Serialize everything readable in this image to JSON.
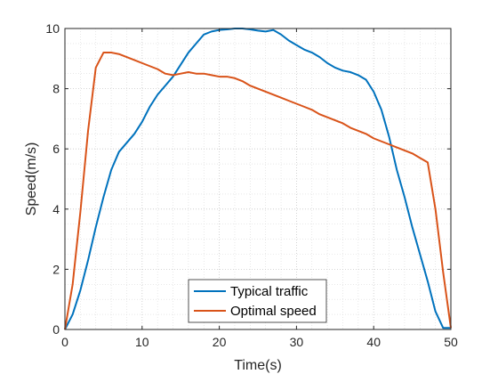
{
  "chart_data": {
    "type": "line",
    "title": "",
    "xlabel": "Time(s)",
    "ylabel": "Speed(m/s)",
    "xlim": [
      0,
      50
    ],
    "ylim": [
      0,
      10
    ],
    "xticks": [
      0,
      10,
      20,
      30,
      40,
      50
    ],
    "yticks": [
      0,
      2,
      4,
      6,
      8,
      10
    ],
    "grid": "on (major and minor, dotted)",
    "legend_position": "bottom-center",
    "series": [
      {
        "name": "Typical traffic",
        "color": "#0072BD",
        "x": [
          0,
          1,
          2,
          3,
          4,
          5,
          6,
          7,
          8,
          9,
          10,
          11,
          12,
          13,
          14,
          15,
          16,
          17,
          18,
          19,
          20,
          21,
          22,
          23,
          24,
          25,
          26,
          27,
          28,
          29,
          30,
          31,
          32,
          33,
          34,
          35,
          36,
          37,
          38,
          39,
          40,
          41,
          42,
          43,
          44,
          45,
          46,
          47,
          48,
          49,
          50
        ],
        "y": [
          0,
          0.5,
          1.3,
          2.3,
          3.4,
          4.4,
          5.3,
          5.9,
          6.2,
          6.5,
          6.9,
          7.4,
          7.8,
          8.1,
          8.4,
          8.8,
          9.2,
          9.5,
          9.8,
          9.9,
          9.95,
          9.97,
          10.0,
          10.0,
          9.97,
          9.93,
          9.9,
          9.95,
          9.8,
          9.6,
          9.45,
          9.3,
          9.2,
          9.05,
          8.85,
          8.7,
          8.6,
          8.55,
          8.45,
          8.3,
          7.9,
          7.3,
          6.4,
          5.3,
          4.4,
          3.4,
          2.5,
          1.6,
          0.6,
          0.05,
          0.05
        ]
      },
      {
        "name": "Optimal speed",
        "color": "#D95319",
        "x": [
          0,
          1,
          2,
          3,
          4,
          5,
          6,
          7,
          8,
          9,
          10,
          11,
          12,
          13,
          14,
          15,
          16,
          17,
          18,
          19,
          20,
          21,
          22,
          23,
          24,
          25,
          26,
          27,
          28,
          29,
          30,
          31,
          32,
          33,
          34,
          35,
          36,
          37,
          38,
          39,
          40,
          41,
          42,
          43,
          44,
          45,
          46,
          47,
          48,
          49,
          50
        ],
        "y": [
          0,
          1.5,
          3.9,
          6.6,
          8.7,
          9.2,
          9.2,
          9.15,
          9.05,
          8.95,
          8.85,
          8.75,
          8.65,
          8.5,
          8.45,
          8.5,
          8.55,
          8.5,
          8.5,
          8.45,
          8.4,
          8.4,
          8.35,
          8.25,
          8.1,
          8.0,
          7.9,
          7.8,
          7.7,
          7.6,
          7.5,
          7.4,
          7.3,
          7.15,
          7.05,
          6.95,
          6.85,
          6.7,
          6.6,
          6.5,
          6.35,
          6.25,
          6.15,
          6.05,
          5.95,
          5.85,
          5.7,
          5.55,
          4.0,
          1.9,
          0.05
        ]
      }
    ]
  }
}
